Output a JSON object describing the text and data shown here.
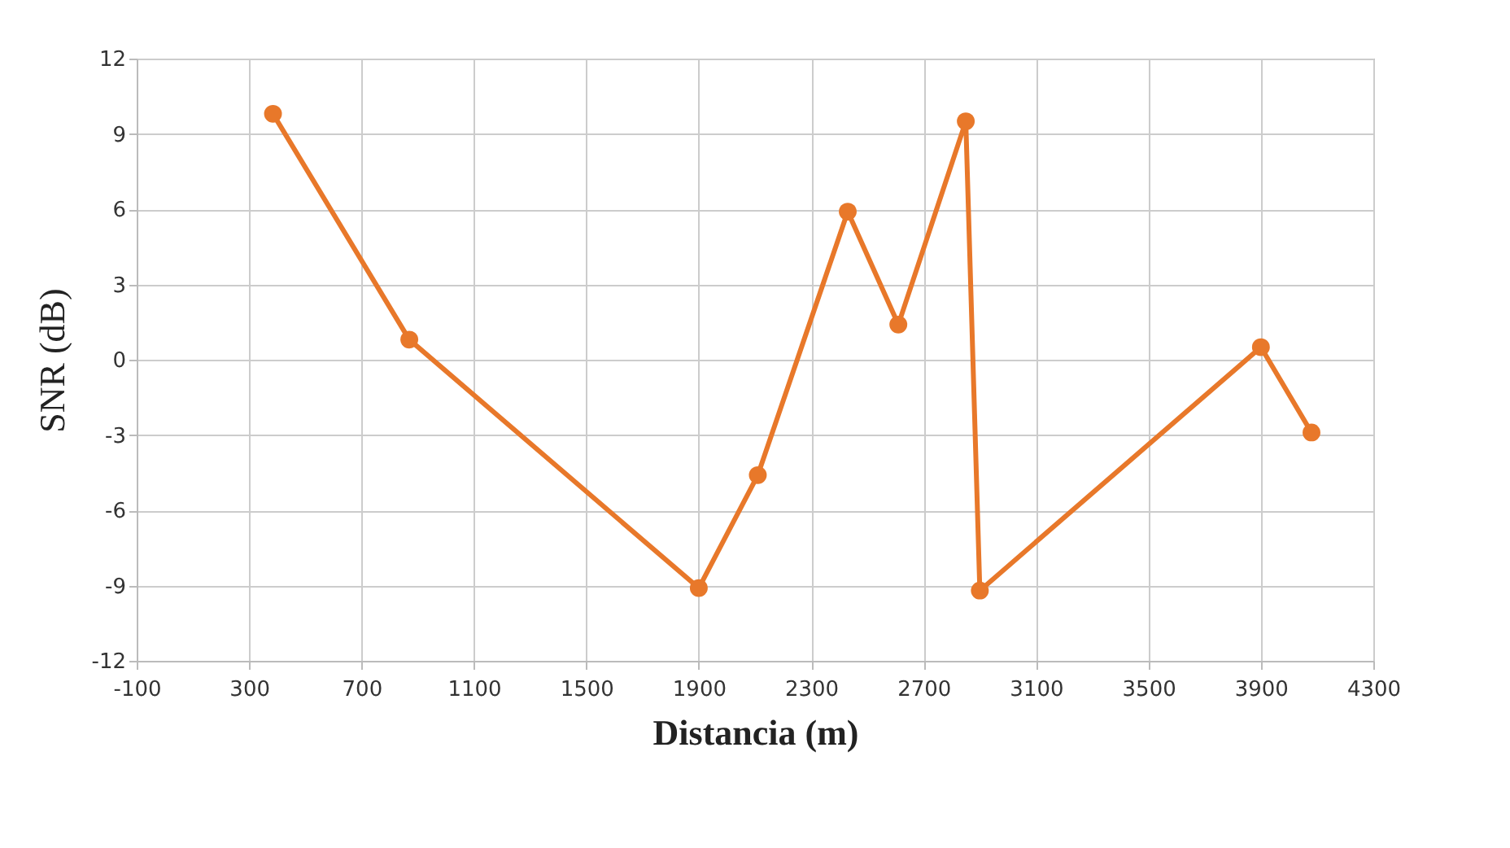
{
  "chart_data": {
    "type": "line",
    "xlabel": "Distancia (m)",
    "ylabel": "SNR (dB)",
    "x": [
      385,
      870,
      1900,
      2110,
      2430,
      2610,
      2850,
      2900,
      3900,
      4080
    ],
    "series": [
      {
        "color": "#e8782a",
        "values": [
          9.8,
          0.8,
          -9.1,
          -4.6,
          5.9,
          1.4,
          9.5,
          -9.2,
          0.5,
          -2.9
        ]
      }
    ],
    "xlim": [
      -100,
      4300
    ],
    "xticks": [
      -100,
      300,
      700,
      1100,
      1500,
      1900,
      2300,
      2700,
      3100,
      3500,
      3900,
      4300
    ],
    "ylim": [
      -12,
      12
    ],
    "yticks": [
      -12,
      -9,
      -6,
      -3,
      0,
      3,
      6,
      9,
      12
    ],
    "grid": true,
    "marker": "circle",
    "line_style": "solid"
  }
}
